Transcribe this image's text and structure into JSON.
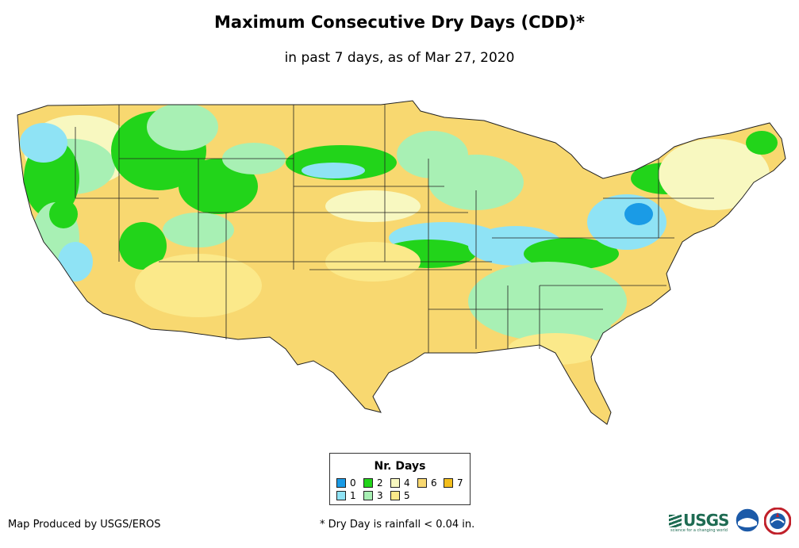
{
  "title": "Maximum Consecutive Dry Days (CDD)*",
  "subtitle": "in past 7 days, as of Mar 27, 2020",
  "legend": {
    "title": "Nr. Days",
    "items": [
      {
        "label": "0",
        "color": "#1a9be6"
      },
      {
        "label": "1",
        "color": "#8fe3f5"
      },
      {
        "label": "2",
        "color": "#22d41a"
      },
      {
        "label": "3",
        "color": "#a8f0b4"
      },
      {
        "label": "4",
        "color": "#f8f8c0"
      },
      {
        "label": "5",
        "color": "#fbe98a"
      },
      {
        "label": "6",
        "color": "#f8d870"
      },
      {
        "label": "7",
        "color": "#f3be1c"
      }
    ]
  },
  "credit": "Map Produced by USGS/EROS",
  "footnote": "* Dry Day is rainfall < 0.04 in.",
  "logos": {
    "usgs": "USGS",
    "usgs_tagline": "science for a changing world",
    "noaa": "noaa-logo",
    "nws": "nws-logo"
  }
}
